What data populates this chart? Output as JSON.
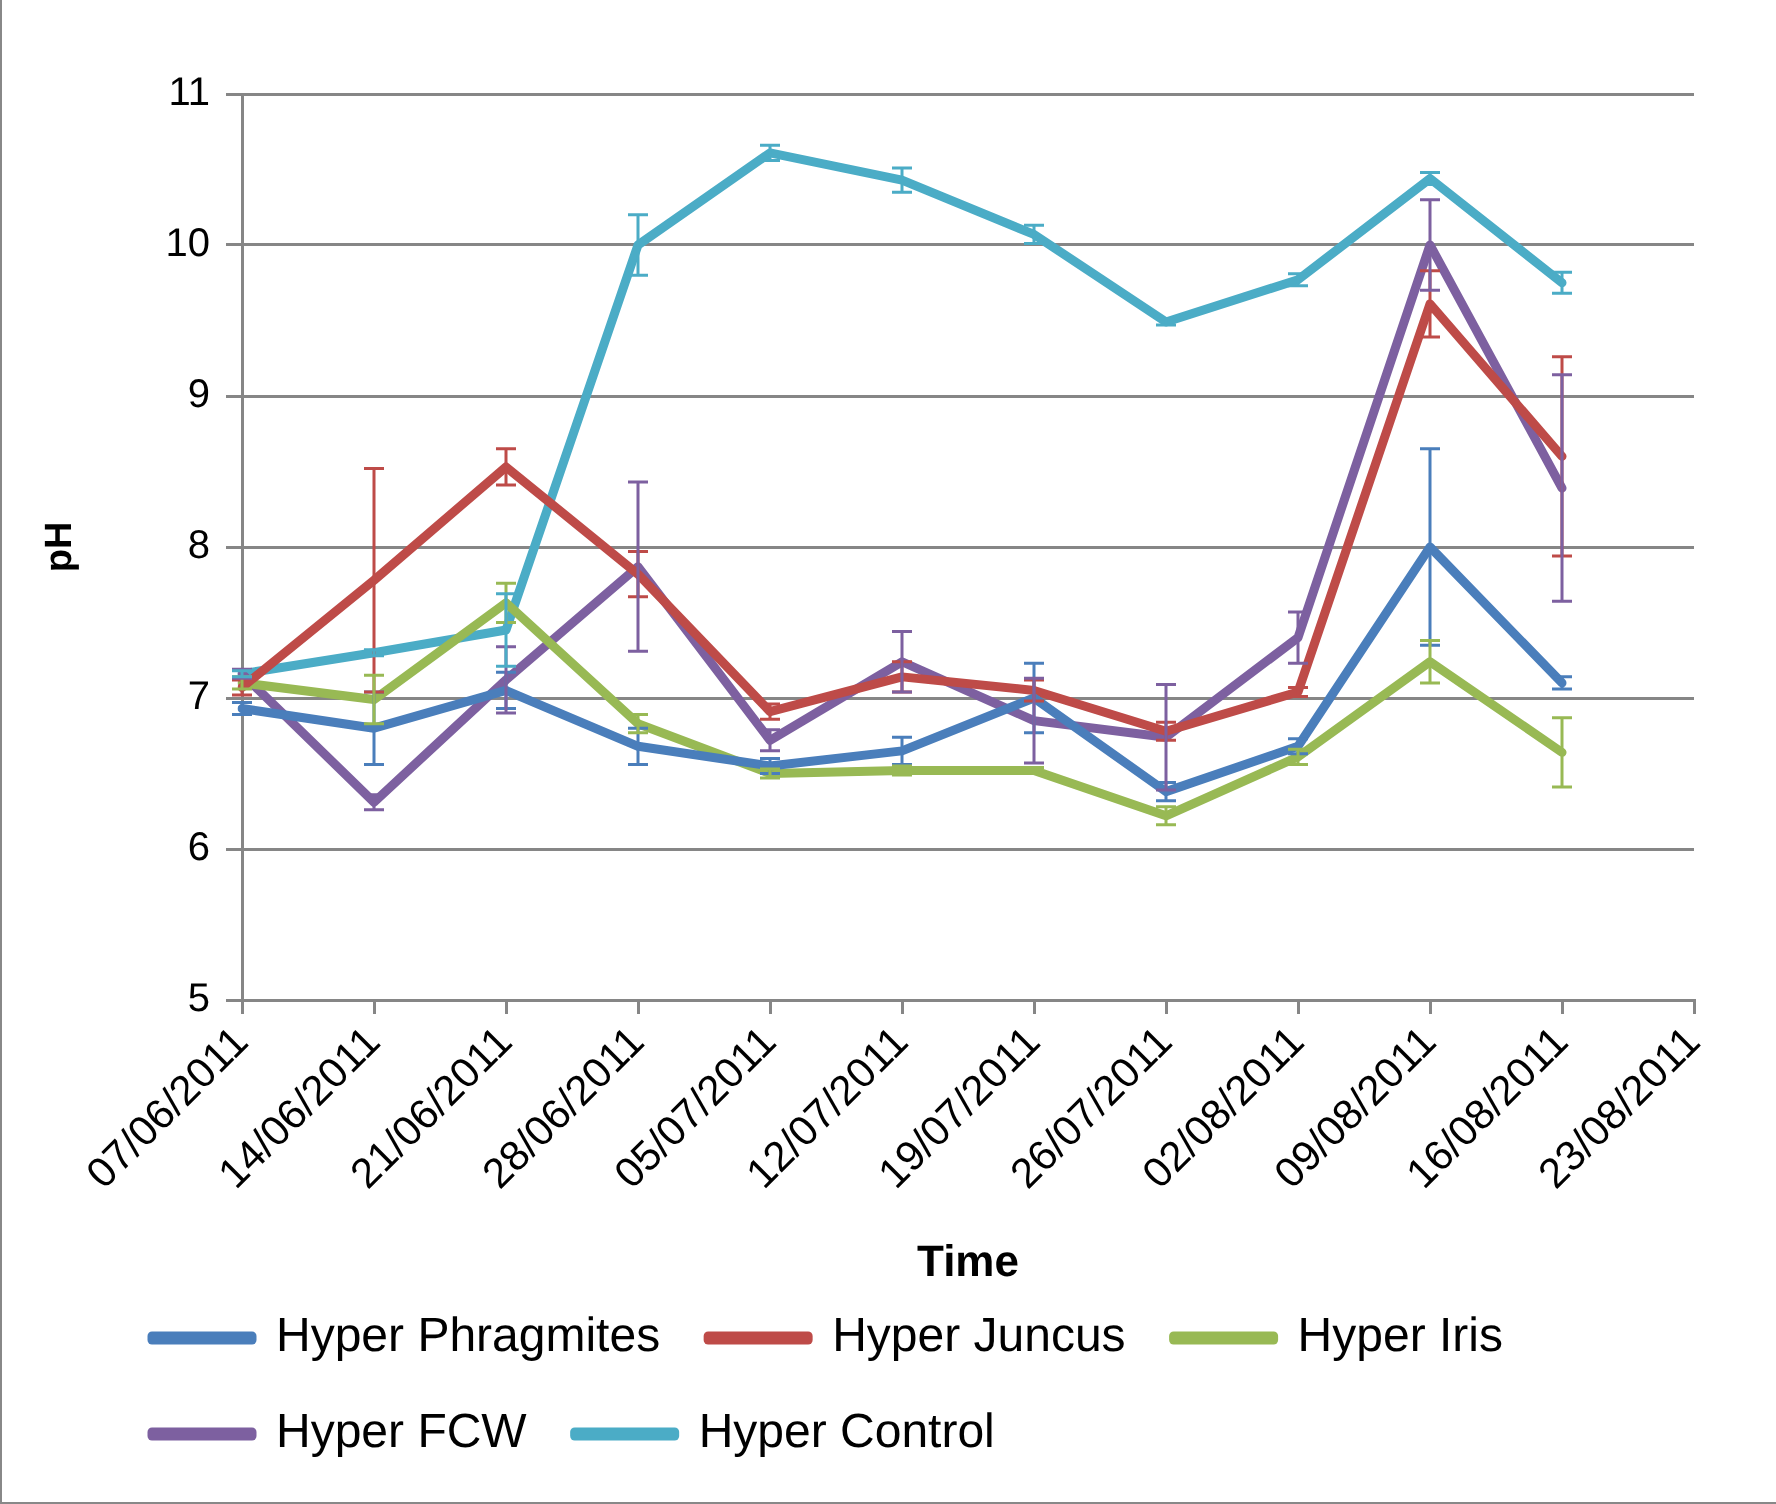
{
  "chart_data": {
    "type": "line",
    "xlabel": "Time",
    "ylabel": "pH",
    "categories": [
      "07/06/2011",
      "14/06/2011",
      "21/06/2011",
      "28/06/2011",
      "05/07/2011",
      "12/07/2011",
      "19/07/2011",
      "26/07/2011",
      "02/08/2011",
      "09/08/2011",
      "16/08/2011",
      "23/08/2011"
    ],
    "ylim": [
      5,
      11
    ],
    "yticks": [
      5,
      6,
      7,
      8,
      9,
      10,
      11
    ],
    "grid": "y",
    "legend": "bottom",
    "series": [
      {
        "name": "Hyper Phragmites",
        "color": "#4a7ebb",
        "values": [
          6.93,
          6.8,
          7.05,
          6.68,
          6.55,
          6.65,
          7.0,
          6.38,
          6.68,
          8.0,
          7.1,
          null
        ],
        "errors": [
          0.04,
          0.24,
          0.12,
          0.12,
          0.05,
          0.09,
          0.23,
          0.06,
          0.05,
          0.65,
          0.04,
          null
        ]
      },
      {
        "name": "Hyper Juncus",
        "color": "#be4b48",
        "values": [
          7.07,
          7.78,
          8.53,
          7.82,
          6.91,
          7.14,
          7.05,
          6.78,
          7.04,
          9.61,
          8.6,
          null
        ],
        "errors": [
          0.05,
          0.74,
          0.12,
          0.15,
          0.05,
          0.1,
          0.07,
          0.06,
          0.03,
          0.22,
          0.66,
          null
        ]
      },
      {
        "name": "Hyper Iris",
        "color": "#98b954",
        "values": [
          7.1,
          6.99,
          7.63,
          6.83,
          6.5,
          6.52,
          6.52,
          6.22,
          6.61,
          7.24,
          6.64,
          null
        ],
        "errors": [
          0.04,
          0.16,
          0.13,
          0.06,
          0.03,
          0.03,
          0.02,
          0.06,
          0.05,
          0.14,
          0.23,
          null
        ]
      },
      {
        "name": "Hyper FCW",
        "color": "#7d60a0",
        "values": [
          7.16,
          6.31,
          7.12,
          7.87,
          6.72,
          7.24,
          6.85,
          6.74,
          7.4,
          10.0,
          8.39,
          null
        ],
        "errors": [
          0.03,
          0.05,
          0.22,
          0.56,
          0.07,
          0.2,
          0.28,
          0.35,
          0.17,
          0.3,
          0.75,
          null
        ]
      },
      {
        "name": "Hyper Control",
        "color": "#4bacc6",
        "values": [
          7.16,
          7.3,
          7.45,
          10.0,
          10.61,
          10.43,
          10.07,
          9.49,
          9.77,
          10.44,
          9.75,
          null
        ],
        "errors": [
          0.02,
          0.02,
          0.24,
          0.2,
          0.05,
          0.08,
          0.06,
          0.02,
          0.04,
          0.04,
          0.07,
          null
        ]
      }
    ]
  }
}
